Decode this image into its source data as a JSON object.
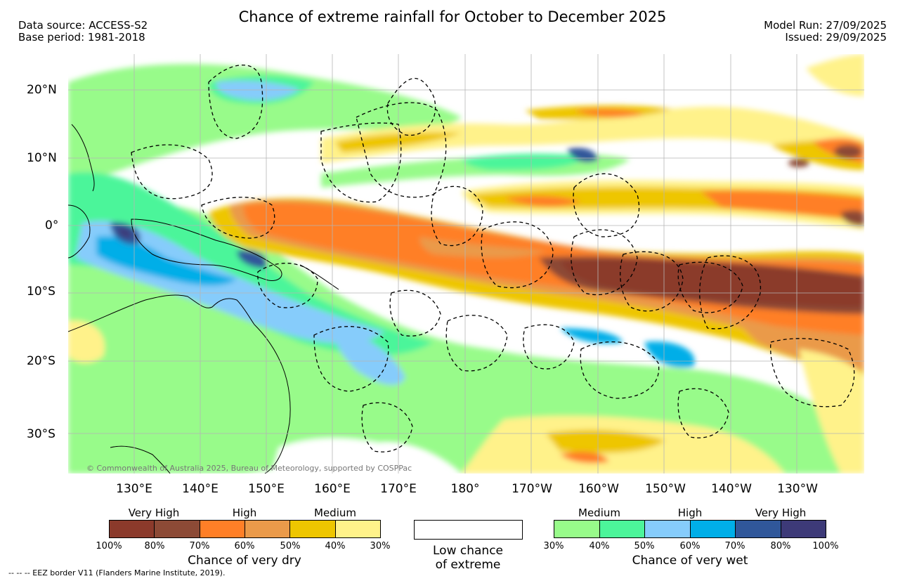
{
  "title": "Chance of extreme rainfall for October to December 2025",
  "header_left": {
    "source": "Data source: ACCESS-S2",
    "base": "Base period: 1981-2018"
  },
  "header_right": {
    "model_run": "Model Run: 27/09/2025",
    "issued": "Issued: 29/09/2025"
  },
  "lon_labels": [
    "130°E",
    "140°E",
    "150°E",
    "160°E",
    "170°E",
    "180°",
    "170°W",
    "160°W",
    "150°W",
    "140°W",
    "130°W"
  ],
  "lat_labels": [
    "20°N",
    "10°N",
    "0°",
    "10°S",
    "20°S",
    "30°S"
  ],
  "copyright": "© Commonwealth of Australia 2025, Bureau of Meteorology, supported by COSPPac",
  "legend_dry": {
    "categories": [
      "Very High",
      "High",
      "Medium"
    ],
    "ticks": [
      "100%",
      "80%",
      "70%",
      "60%",
      "50%",
      "40%",
      "30%"
    ],
    "colors": [
      "#8b3a2b",
      "#8c4a36",
      "#ff7f27",
      "#ea9a4a",
      "#eec600",
      "#fff28a"
    ],
    "title": "Chance of very dry"
  },
  "legend_low": {
    "line1": "Low chance",
    "line2": "of extreme"
  },
  "legend_wet": {
    "categories": [
      "Medium",
      "High",
      "Very High"
    ],
    "ticks": [
      "30%",
      "40%",
      "50%",
      "60%",
      "70%",
      "80%",
      "100%"
    ],
    "colors": [
      "#98fb8a",
      "#4cf59a",
      "#86ccfb",
      "#00aee8",
      "#30579a",
      "#3d3a78"
    ],
    "title": "Chance of very wet"
  },
  "eez_note": "-- -- -- EEZ border V11 (Flanders Marine Institute, 2019)."
}
